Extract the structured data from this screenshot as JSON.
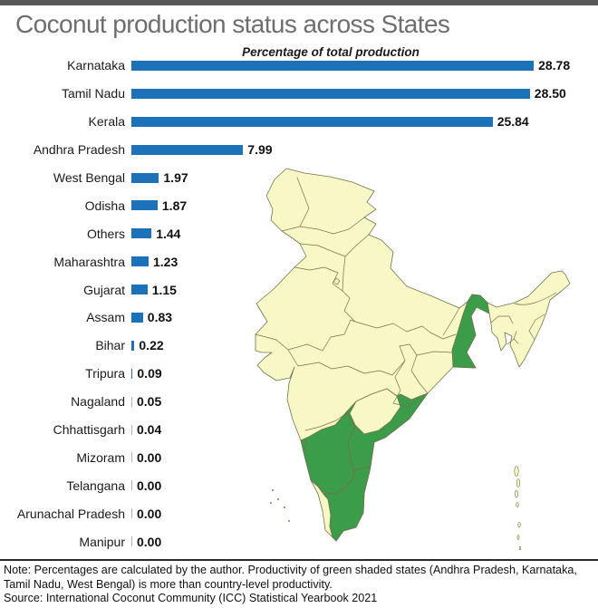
{
  "header": {
    "title": "Coconut production status across States"
  },
  "chart": {
    "subtitle": "Percentage of total production"
  },
  "chart_data": {
    "type": "bar",
    "orientation": "horizontal",
    "title": "Coconut production status across States",
    "subtitle": "Percentage of total production",
    "unit": "percent of total production",
    "categories": [
      "Karnataka",
      "Tamil Nadu",
      "Kerala",
      "Andhra Pradesh",
      "West Bengal",
      "Odisha",
      "Others",
      "Maharashtra",
      "Gujarat",
      "Assam",
      "Bihar",
      "Tripura",
      "Nagaland",
      "Chhattisgarh",
      "Mizoram",
      "Telangana",
      "Arunachal Pradesh",
      "Manipur"
    ],
    "values": [
      28.78,
      28.5,
      25.84,
      7.99,
      1.97,
      1.87,
      1.44,
      1.23,
      1.15,
      0.83,
      0.22,
      0.09,
      0.05,
      0.04,
      0.0,
      0.0,
      0.0,
      0.0
    ],
    "display_values": [
      "28.78",
      "28.50",
      "25.84",
      "7.99",
      "1.97",
      "1.87",
      "1.44",
      "1.23",
      "1.15",
      "0.83",
      "0.22",
      "0.09",
      "0.05",
      "0.04",
      "0.00",
      "0.00",
      "0.00",
      "0.00"
    ],
    "xlim": [
      0,
      30
    ],
    "grid": false,
    "legend": "none",
    "bar_color": "#1b72b8"
  },
  "map": {
    "description": "India states map with top coconut-producing states shaded green",
    "green_states": [
      "Andhra Pradesh",
      "Karnataka",
      "Tamil Nadu",
      "West Bengal"
    ],
    "colors": {
      "highlight": "#3b9c49",
      "base": "#f8f8c6",
      "border": "#72724e"
    }
  },
  "footer": {
    "note": "Note: Percentages are calculated by the author. Productivity of green shaded states (Andhra Pradesh, Karnataka, Tamil Nadu, West Bengal) is more than country-level productivity.",
    "source": "Source: International Coconut Community (ICC) Statistical Yearbook 2021"
  },
  "colors": {
    "bar": "#1b72b8",
    "topbar": "#58595b",
    "title": "#6e6e6e"
  }
}
